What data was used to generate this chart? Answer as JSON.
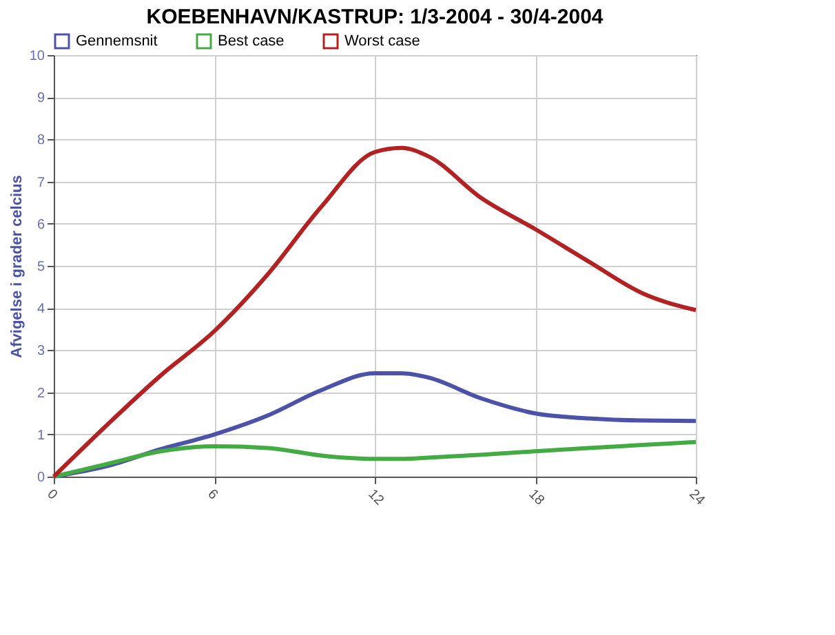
{
  "chart_data": {
    "type": "line",
    "title": "KOEBENHAVN/KASTRUP: 1/3-2004 - 30/4-2004",
    "ylabel": "Afvigelse i grader celcius",
    "x": [
      0,
      2,
      4,
      6,
      8,
      10,
      12,
      13,
      14,
      16,
      18,
      20,
      22,
      24
    ],
    "series": [
      {
        "name": "Gennemsnit",
        "color": "#4b52a8",
        "values": [
          0,
          0.25,
          0.65,
          1.0,
          1.45,
          2.05,
          2.45,
          2.45,
          2.35,
          1.85,
          1.5,
          1.38,
          1.33,
          1.32
        ]
      },
      {
        "name": "Best case",
        "color": "#44aa44",
        "values": [
          0,
          0.3,
          0.6,
          0.72,
          0.68,
          0.5,
          0.42,
          0.42,
          0.45,
          0.52,
          0.6,
          0.68,
          0.75,
          0.82
        ]
      },
      {
        "name": "Worst case",
        "color": "#b22222",
        "values": [
          0,
          1.23,
          2.4,
          3.45,
          4.8,
          6.4,
          7.7,
          7.8,
          7.6,
          6.6,
          5.87,
          5.1,
          4.35,
          3.95
        ]
      }
    ],
    "xlim": [
      0,
      24
    ],
    "xticks": [
      0,
      6,
      12,
      18,
      24
    ],
    "ylim": [
      0,
      10
    ],
    "yticks": [
      0,
      1,
      2,
      3,
      4,
      5,
      6,
      7,
      8,
      9,
      10
    ],
    "grid": true,
    "legend": "top left",
    "line_style": "solid",
    "marker": "none"
  }
}
